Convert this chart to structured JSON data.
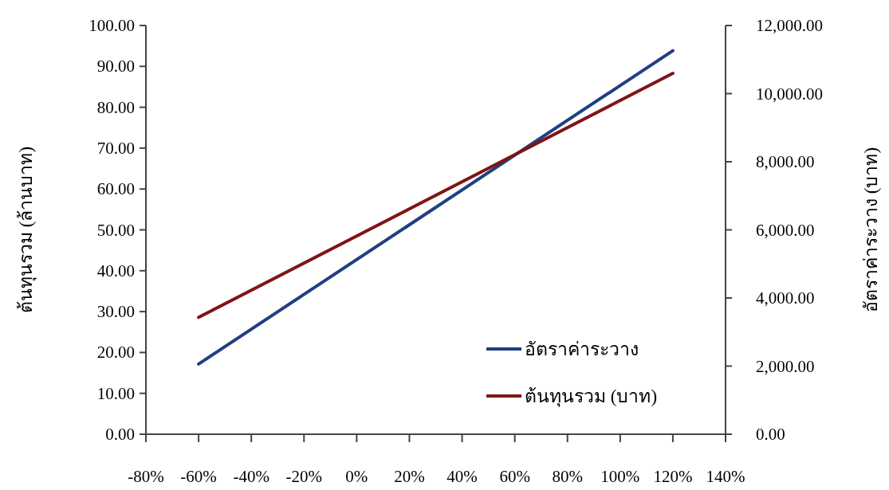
{
  "chart_data": {
    "type": "line",
    "ylabel": "ต้นทุนรวม (ล้านบาท)",
    "y2label": "อัตราค่าระวาง (บาท)",
    "legend": "bottom right",
    "xlim": [
      -80,
      140
    ],
    "xticks": [
      {
        "value": -80,
        "label": "-80%"
      },
      {
        "value": -60,
        "label": "-60%"
      },
      {
        "value": -40,
        "label": "-40%"
      },
      {
        "value": -20,
        "label": "-20%"
      },
      {
        "value": 0,
        "label": "0%"
      },
      {
        "value": 20,
        "label": "20%"
      },
      {
        "value": 40,
        "label": "40%"
      },
      {
        "value": 60,
        "label": "60%"
      },
      {
        "value": 80,
        "label": "80%"
      },
      {
        "value": 100,
        "label": "100%"
      },
      {
        "value": 120,
        "label": "120%"
      },
      {
        "value": 140,
        "label": "140%"
      }
    ],
    "ylim": [
      0,
      100
    ],
    "yticks": [
      {
        "value": 0,
        "label": "0.00"
      },
      {
        "value": 10,
        "label": "10.00"
      },
      {
        "value": 20,
        "label": "20.00"
      },
      {
        "value": 30,
        "label": "30.00"
      },
      {
        "value": 40,
        "label": "40.00"
      },
      {
        "value": 50,
        "label": "50.00"
      },
      {
        "value": 60,
        "label": "60.00"
      },
      {
        "value": 70,
        "label": "70.00"
      },
      {
        "value": 80,
        "label": "80.00"
      },
      {
        "value": 90,
        "label": "90.00"
      },
      {
        "value": 100,
        "label": "100.00"
      }
    ],
    "y2lim": [
      0,
      12000
    ],
    "y2ticks": [
      {
        "value": 0,
        "label": "0.00"
      },
      {
        "value": 2000,
        "label": "2,000.00"
      },
      {
        "value": 4000,
        "label": "4,000.00"
      },
      {
        "value": 6000,
        "label": "6,000.00"
      },
      {
        "value": 8000,
        "label": "8,000.00"
      },
      {
        "value": 10000,
        "label": "10,000.00"
      },
      {
        "value": 12000,
        "label": "12,000.00"
      }
    ],
    "x": [
      -60,
      120
    ],
    "series": [
      {
        "name": "อัตราค่าระวาง",
        "color": "#1f3f7f",
        "axis": "y2",
        "values": [
          2060,
          11260
        ]
      },
      {
        "name": "ต้นทุนรวม (บาท)",
        "color": "#7f1416",
        "values": [
          28.6,
          88.3
        ]
      }
    ]
  }
}
